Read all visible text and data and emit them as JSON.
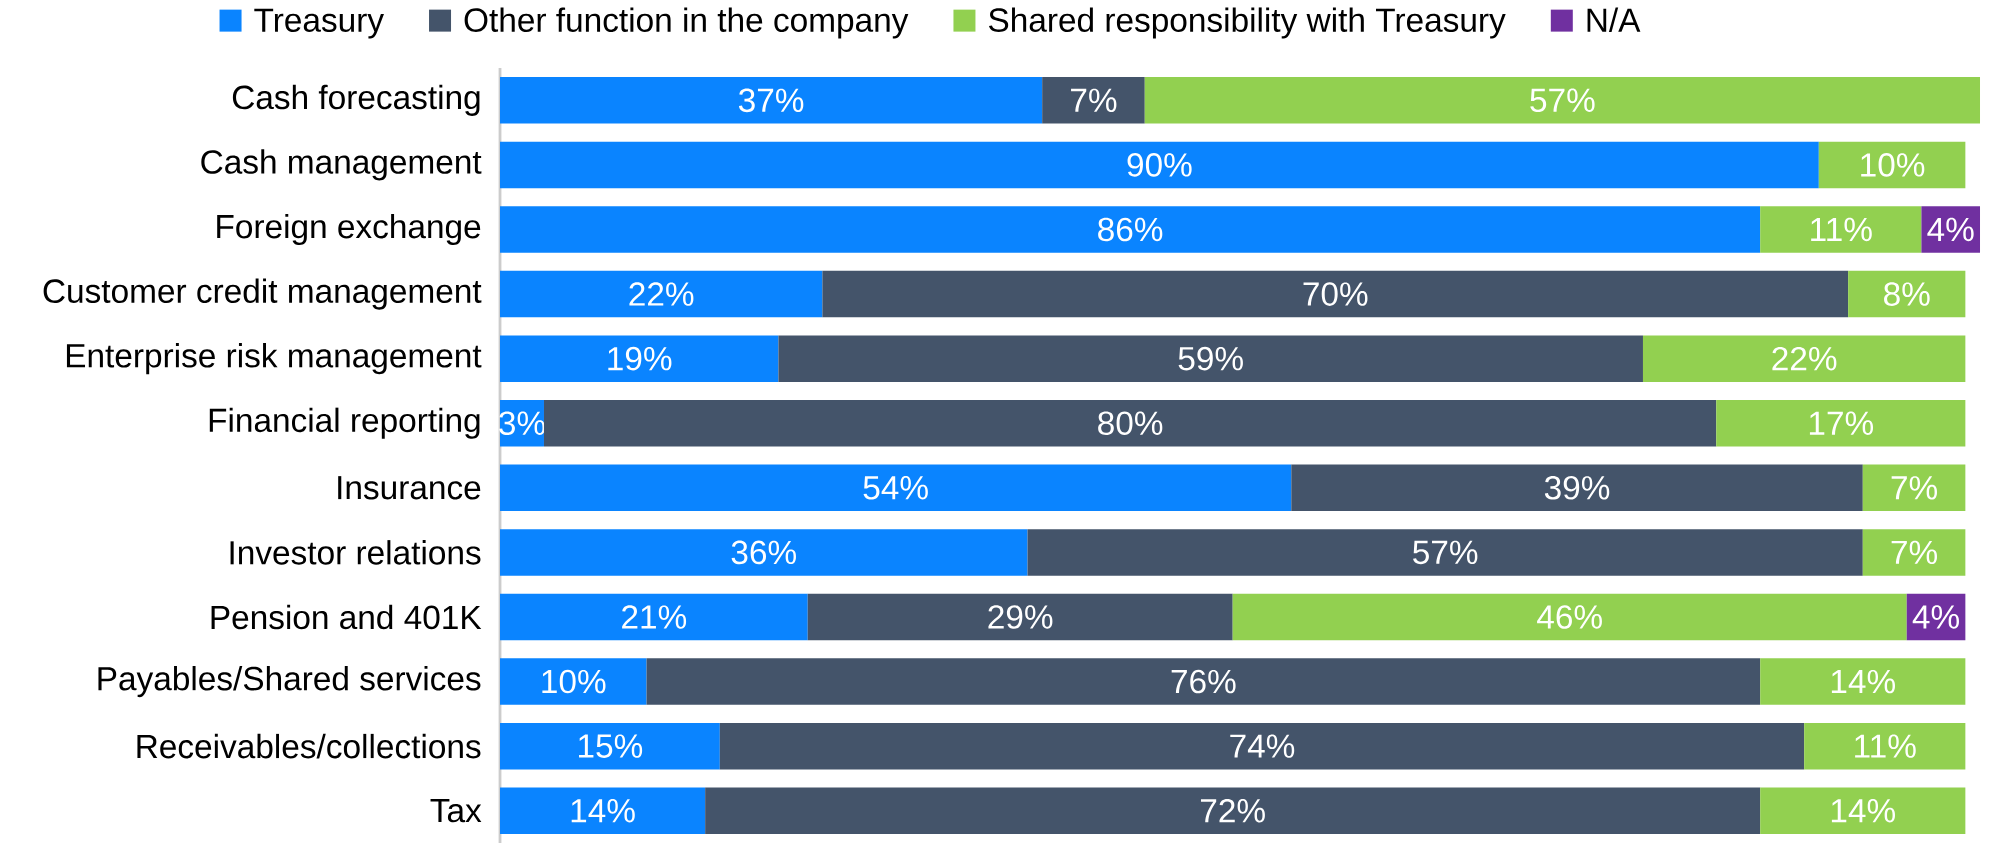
{
  "chart_data": {
    "type": "bar",
    "orientation": "horizontal",
    "stacked": true,
    "legend": "top",
    "tick_labels": "y",
    "xlim": [
      0,
      101
    ],
    "categories": [
      "Cash forecasting",
      "Cash management",
      "Foreign exchange",
      "Customer credit management",
      "Enterprise risk management",
      "Financial reporting",
      "Insurance",
      "Investor relations",
      "Pension and 401K",
      "Payables/Shared services",
      "Receivables/collections",
      "Tax"
    ],
    "series": [
      {
        "name": "Treasury",
        "color": "#0a84ff",
        "values": [
          37,
          90,
          86,
          22,
          19,
          3,
          54,
          36,
          21,
          10,
          15,
          14
        ],
        "value_labels": [
          "37%",
          "90%",
          "86%",
          "22%",
          "19%",
          "3%",
          "54%",
          "36%",
          "21%",
          "10%",
          "15%",
          "14%"
        ]
      },
      {
        "name": "Other function in the company",
        "color": "#44546a",
        "values": [
          7,
          null,
          null,
          70,
          59,
          80,
          39,
          57,
          29,
          76,
          74,
          72
        ],
        "value_labels": [
          "7%",
          null,
          null,
          "70%",
          "59%",
          "80%",
          "39%",
          "57%",
          "29%",
          "76%",
          "74%",
          "72%"
        ]
      },
      {
        "name": "Shared responsibility with Treasury",
        "color": "#92d050",
        "values": [
          57,
          10,
          11,
          8,
          22,
          17,
          7,
          7,
          46,
          14,
          11,
          14
        ],
        "value_labels": [
          "57%",
          "10%",
          "11%",
          "8%",
          "22%",
          "17%",
          "7%",
          "7%",
          "46%",
          "14%",
          "11%",
          "14%"
        ]
      },
      {
        "name": "N/A",
        "color": "#7030a0",
        "values": [
          null,
          null,
          4,
          null,
          null,
          null,
          null,
          null,
          4,
          null,
          null,
          null
        ],
        "value_labels": [
          null,
          null,
          "4%",
          null,
          null,
          null,
          null,
          null,
          "4%",
          null,
          null,
          null
        ]
      }
    ]
  }
}
